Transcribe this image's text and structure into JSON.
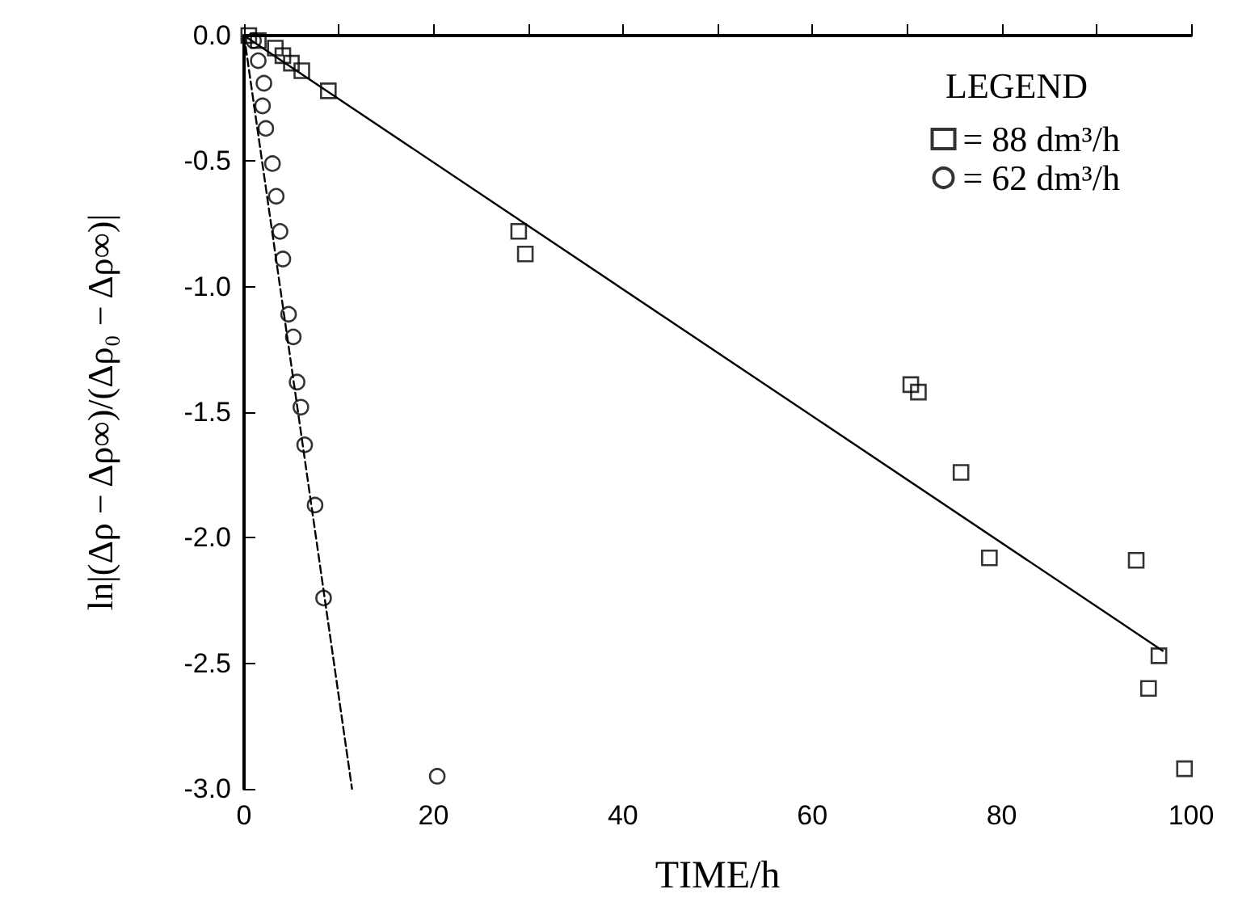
{
  "chart_data": {
    "type": "scatter",
    "xlabel": "TIME/h",
    "ylabel": "ln|(Δρ − Δρ∞)/(Δρ₀ − Δρ∞)|",
    "legend_title": "LEGEND",
    "legend": "top right",
    "grid": false,
    "xlim": [
      0,
      100
    ],
    "ylim": [
      -3,
      0
    ],
    "xticks": [
      0,
      {
        "value": 10,
        "label": null
      },
      20,
      {
        "value": 30,
        "label": null
      },
      40,
      {
        "value": 50,
        "label": null
      },
      60,
      {
        "value": 70,
        "label": null
      },
      80,
      {
        "value": 90,
        "label": null
      },
      100
    ],
    "yticks": [
      {
        "value": 0,
        "label": "0.0"
      },
      {
        "value": -0.5,
        "label": "-0.5"
      },
      {
        "value": -1,
        "label": "-1.0"
      },
      {
        "value": -1.5,
        "label": "-1.5"
      },
      {
        "value": -2,
        "label": "-2.0"
      },
      {
        "value": -2.5,
        "label": "-2.5"
      },
      {
        "value": -3,
        "label": "-3.0"
      }
    ],
    "series": [
      {
        "name": "= 88 dm³/h",
        "color": "#000000",
        "marker": "square",
        "x": [
          0.5,
          1.5,
          3.3,
          4.1,
          5.0,
          6.1,
          8.9,
          29.0,
          29.7,
          70.4,
          71.2,
          75.7,
          78.7,
          94.2,
          95.5,
          96.6,
          99.3
        ],
        "values": [
          0,
          -0.02,
          -0.05,
          -0.08,
          -0.11,
          -0.14,
          -0.22,
          -0.78,
          -0.87,
          -1.39,
          -1.42,
          -1.74,
          -2.08,
          -2.09,
          -2.6,
          -2.47,
          -2.92
        ]
      },
      {
        "name": "= 62 dm³/h",
        "color": "#000000",
        "marker": "circle",
        "x": [
          1.0,
          1.5,
          2.1,
          1.95,
          2.3,
          3.0,
          3.4,
          3.8,
          4.1,
          4.7,
          5.2,
          5.6,
          6.0,
          6.4,
          7.5,
          8.4,
          20.4
        ],
        "values": [
          -0.02,
          -0.1,
          -0.19,
          -0.28,
          -0.37,
          -0.51,
          -0.64,
          -0.78,
          -0.89,
          -1.11,
          -1.2,
          -1.38,
          -1.48,
          -1.63,
          -1.87,
          -2.24,
          -2.95
        ]
      },
      {
        "type": "line",
        "color": "#000000",
        "marker": "none",
        "line_style": "solid",
        "x": [
          0,
          97
        ],
        "values": [
          0,
          -2.45
        ]
      },
      {
        "type": "line",
        "color": "#000000",
        "marker": "none",
        "line_style": "dashed",
        "x": [
          0,
          11.4
        ],
        "values": [
          0,
          -3
        ]
      }
    ]
  }
}
